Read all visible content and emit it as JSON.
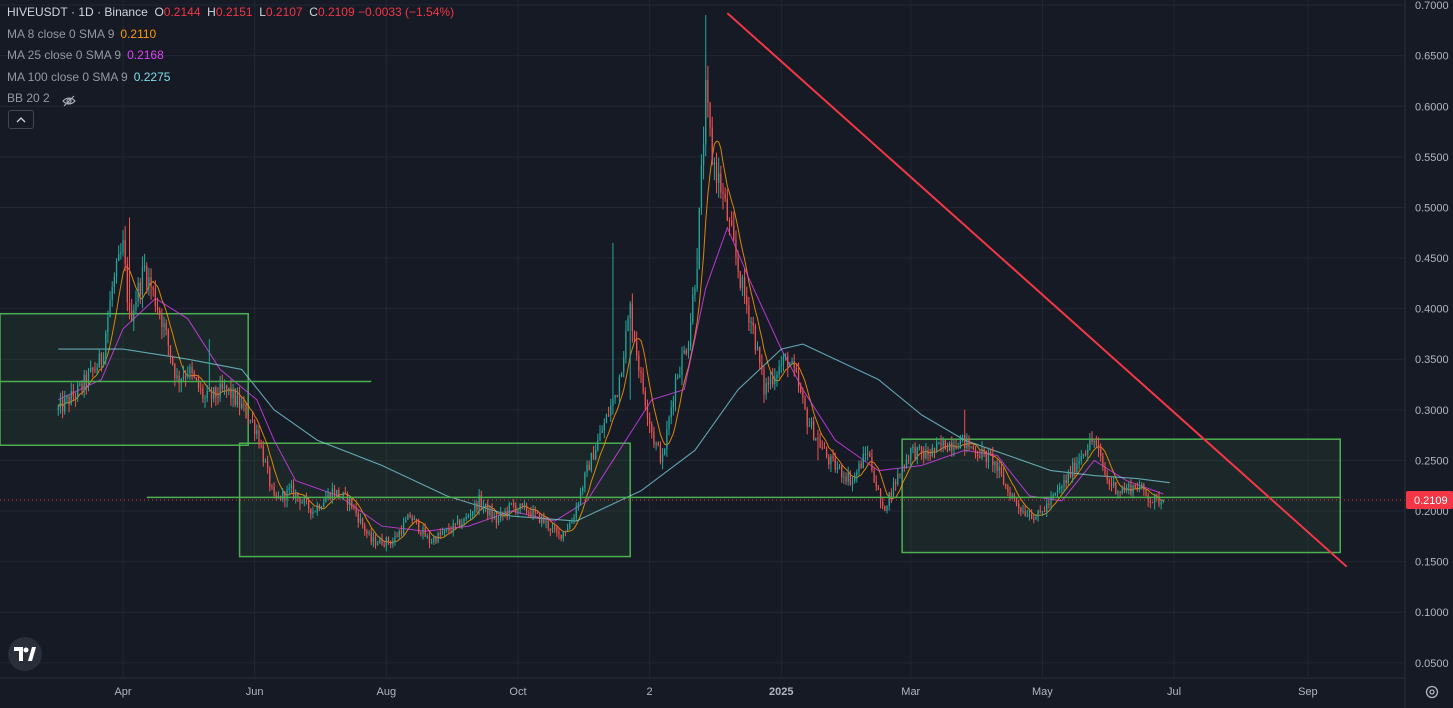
{
  "header": {
    "symbol": "HIVEUSDT",
    "sep1": "·",
    "interval": "1D",
    "sep2": "·",
    "exchange": "Binance",
    "o_label": "O",
    "o_value": "0.2144",
    "h_label": "H",
    "h_value": "0.2151",
    "l_label": "L",
    "l_value": "0.2107",
    "c_label": "C",
    "c_value": "0.2109",
    "change": "−0.0033 (−1.54%)"
  },
  "indicators": [
    {
      "name": "MA 8 close 0 SMA 9",
      "value": "0.2110",
      "color": "#ff9800"
    },
    {
      "name": "MA 25 close 0 SMA 9",
      "value": "0.2168",
      "color": "#e040fb"
    },
    {
      "name": "MA 100 close 0 SMA 9",
      "value": "0.2275",
      "color": "#80deea"
    },
    {
      "name": "BB 20 2",
      "value": "",
      "color": "#9598a1"
    }
  ],
  "chart_data": {
    "type": "candlestick",
    "symbol": "HIVEUSDT",
    "interval": "1D",
    "y_ticks": [
      "0.0500",
      "0.1000",
      "0.1500",
      "0.2000",
      "0.2500",
      "0.3000",
      "0.3500",
      "0.4000",
      "0.4500",
      "0.5000",
      "0.5500",
      "0.6000",
      "0.6500",
      "0.7000"
    ],
    "y_range": [
      0.035,
      0.705
    ],
    "x_ticks": [
      "Apr",
      "Jun",
      "Aug",
      "Oct",
      "2",
      "2025",
      "Mar",
      "May",
      "Jul",
      "Sep"
    ],
    "x_tick_positions_days": [
      30,
      91,
      152,
      213,
      274,
      335,
      395,
      456,
      517,
      579
    ],
    "x_range_days": [
      -27,
      624
    ],
    "last_price": "0.2109",
    "last_price_value": 0.2109,
    "close_path": [
      [
        0,
        0.3
      ],
      [
        10,
        0.32
      ],
      [
        20,
        0.35
      ],
      [
        25,
        0.42
      ],
      [
        30,
        0.46
      ],
      [
        33,
        0.39
      ],
      [
        40,
        0.44
      ],
      [
        48,
        0.39
      ],
      [
        55,
        0.33
      ],
      [
        60,
        0.34
      ],
      [
        68,
        0.31
      ],
      [
        78,
        0.32
      ],
      [
        86,
        0.3
      ],
      [
        92,
        0.28
      ],
      [
        100,
        0.21
      ],
      [
        108,
        0.22
      ],
      [
        118,
        0.2
      ],
      [
        127,
        0.22
      ],
      [
        135,
        0.21
      ],
      [
        145,
        0.17
      ],
      [
        155,
        0.17
      ],
      [
        163,
        0.195
      ],
      [
        172,
        0.17
      ],
      [
        180,
        0.18
      ],
      [
        188,
        0.19
      ],
      [
        195,
        0.21
      ],
      [
        203,
        0.19
      ],
      [
        210,
        0.205
      ],
      [
        218,
        0.2
      ],
      [
        225,
        0.19
      ],
      [
        232,
        0.175
      ],
      [
        238,
        0.19
      ],
      [
        245,
        0.24
      ],
      [
        252,
        0.28
      ],
      [
        259,
        0.32
      ],
      [
        265,
        0.4
      ],
      [
        270,
        0.33
      ],
      [
        276,
        0.27
      ],
      [
        280,
        0.25
      ],
      [
        286,
        0.33
      ],
      [
        292,
        0.37
      ],
      [
        296,
        0.45
      ],
      [
        300,
        0.61
      ],
      [
        303,
        0.55
      ],
      [
        307,
        0.52
      ],
      [
        312,
        0.47
      ],
      [
        317,
        0.42
      ],
      [
        322,
        0.38
      ],
      [
        327,
        0.32
      ],
      [
        333,
        0.34
      ],
      [
        338,
        0.35
      ],
      [
        342,
        0.33
      ],
      [
        347,
        0.29
      ],
      [
        352,
        0.27
      ],
      [
        357,
        0.25
      ],
      [
        362,
        0.24
      ],
      [
        368,
        0.23
      ],
      [
        375,
        0.26
      ],
      [
        382,
        0.2
      ],
      [
        388,
        0.23
      ],
      [
        395,
        0.26
      ],
      [
        402,
        0.255
      ],
      [
        410,
        0.265
      ],
      [
        418,
        0.27
      ],
      [
        425,
        0.26
      ],
      [
        433,
        0.25
      ],
      [
        440,
        0.22
      ],
      [
        447,
        0.2
      ],
      [
        454,
        0.195
      ],
      [
        460,
        0.21
      ],
      [
        467,
        0.23
      ],
      [
        475,
        0.26
      ],
      [
        480,
        0.27
      ],
      [
        486,
        0.23
      ],
      [
        492,
        0.22
      ],
      [
        500,
        0.225
      ],
      [
        507,
        0.21
      ],
      [
        512,
        0.2109
      ]
    ],
    "ma8_color": "#ff9800",
    "ma25_color": "#e040fb",
    "ma100_color": "#80deea",
    "ma100_path": [
      [
        0,
        0.36
      ],
      [
        30,
        0.36
      ],
      [
        60,
        0.35
      ],
      [
        85,
        0.34
      ],
      [
        100,
        0.3
      ],
      [
        120,
        0.27
      ],
      [
        150,
        0.245
      ],
      [
        180,
        0.215
      ],
      [
        210,
        0.195
      ],
      [
        240,
        0.19
      ],
      [
        270,
        0.22
      ],
      [
        295,
        0.26
      ],
      [
        315,
        0.32
      ],
      [
        335,
        0.36
      ],
      [
        345,
        0.365
      ],
      [
        360,
        0.35
      ],
      [
        380,
        0.33
      ],
      [
        400,
        0.295
      ],
      [
        420,
        0.27
      ],
      [
        440,
        0.255
      ],
      [
        460,
        0.24
      ],
      [
        480,
        0.235
      ],
      [
        500,
        0.232
      ],
      [
        515,
        0.228
      ]
    ],
    "ma25_path": [
      [
        0,
        0.31
      ],
      [
        20,
        0.33
      ],
      [
        30,
        0.38
      ],
      [
        45,
        0.41
      ],
      [
        60,
        0.39
      ],
      [
        75,
        0.34
      ],
      [
        92,
        0.31
      ],
      [
        100,
        0.27
      ],
      [
        110,
        0.23
      ],
      [
        130,
        0.215
      ],
      [
        150,
        0.185
      ],
      [
        170,
        0.18
      ],
      [
        190,
        0.185
      ],
      [
        210,
        0.2
      ],
      [
        230,
        0.19
      ],
      [
        245,
        0.21
      ],
      [
        260,
        0.26
      ],
      [
        275,
        0.31
      ],
      [
        290,
        0.32
      ],
      [
        300,
        0.42
      ],
      [
        310,
        0.48
      ],
      [
        320,
        0.43
      ],
      [
        335,
        0.36
      ],
      [
        345,
        0.32
      ],
      [
        360,
        0.27
      ],
      [
        380,
        0.24
      ],
      [
        400,
        0.245
      ],
      [
        420,
        0.26
      ],
      [
        435,
        0.255
      ],
      [
        450,
        0.215
      ],
      [
        465,
        0.21
      ],
      [
        480,
        0.25
      ],
      [
        495,
        0.23
      ],
      [
        512,
        0.2168
      ]
    ],
    "drawings": {
      "trendline": {
        "from": [
          310,
          0.692
        ],
        "to": [
          597,
          0.145
        ],
        "color": "#f23645"
      },
      "boxes": [
        {
          "from": [
            -27,
            0.265
          ],
          "to": [
            88,
            0.395
          ],
          "color": "#4caf50"
        },
        {
          "from": [
            84,
            0.155
          ],
          "to": [
            265,
            0.267
          ],
          "color": "#4caf50"
        },
        {
          "from": [
            391,
            0.159
          ],
          "to": [
            594,
            0.271
          ],
          "color": "#4caf50"
        }
      ],
      "hlines": [
        {
          "from": [
            -27,
            0.328
          ],
          "to": [
            145,
            0.328
          ],
          "color": "#4caf50"
        },
        {
          "from": [
            41,
            0.2135
          ],
          "to": [
            594,
            0.2135
          ],
          "color": "#4caf50"
        }
      ]
    }
  },
  "colors": {
    "background": "#161a25",
    "grid": "#232632",
    "up": "#26a69a",
    "down": "#ef5350",
    "axis_text": "#b2b5be",
    "price_label_bg": "#f23645"
  }
}
